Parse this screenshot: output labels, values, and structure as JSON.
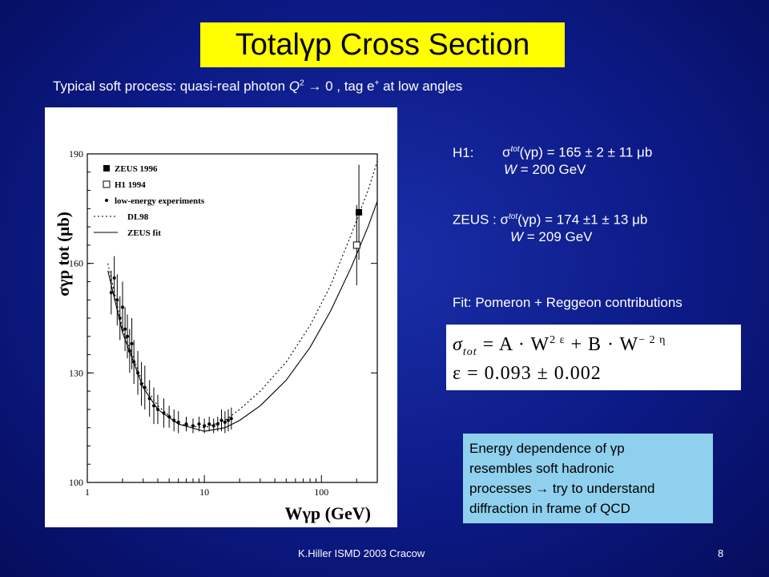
{
  "title": {
    "prefix": "Total ",
    "greek": "γ",
    "suffix": "p Cross Section"
  },
  "subtitle": {
    "text1": "Typical soft process:  quasi-real photon ",
    "q": "Q",
    "q_exp": "2",
    "arrow": " → ",
    "text2": "0 ,  tag  e",
    "e_exp": "+",
    "text3": "  at low angles"
  },
  "results": {
    "h1": {
      "label": "H1:",
      "sigma": "σ",
      "sup": "tot",
      "value": "(γp) = 165 ± 2 ± 11 μb",
      "w_var": "W",
      "w_value": " = 200 GeV"
    },
    "zeus": {
      "label": "ZEUS : ",
      "sigma": "σ",
      "sup": "tot",
      "value": "(γp) = 174 ±1 ± 13 μb",
      "w_var": "W",
      "w_value": " = 209 GeV"
    }
  },
  "fit_label": "Fit: Pomeron + Reggeon contributions",
  "formula": {
    "line1_sigma": "σ",
    "line1_sub": "tot",
    "line1_rhs": "= A · W",
    "line1_exp1": "2 ε",
    "line1_mid": "+ B · W",
    "line1_exp2": "− 2 η",
    "line2": "ε = 0.093 ± 0.002"
  },
  "note": {
    "line1": "Energy dependence of γp",
    "line2": "resembles soft hadronic",
    "line3": "processes → try to understand",
    "line4": "diffraction in frame of QCD"
  },
  "footer": {
    "left": "K.Hiller ISMD 2003   Cracow",
    "page": "8"
  },
  "chart_data": {
    "type": "scatter",
    "xlabel": "Wγp (GeV)",
    "ylabel": "σγp tot (μb)",
    "x_scale": "log",
    "xlim": [
      1,
      300
    ],
    "ylim": [
      100,
      190
    ],
    "x_ticks": [
      "1",
      "10",
      "100"
    ],
    "y_ticks": [
      "100",
      "130",
      "160",
      "190"
    ],
    "legend": [
      "ZEUS 1996",
      "H1 1994",
      "low-energy experiments",
      "DL98",
      "ZEUS fit"
    ],
    "legend_position": "top-left",
    "series": [
      {
        "name": "ZEUS 1996",
        "points": [
          {
            "x": 209,
            "y": 174,
            "err": 13
          }
        ]
      },
      {
        "name": "H1 1994",
        "points": [
          {
            "x": 200,
            "y": 165,
            "err": 11
          }
        ]
      },
      {
        "name": "low-energy experiments",
        "points": [
          {
            "x": 1.6,
            "y": 152,
            "err": 6
          },
          {
            "x": 1.7,
            "y": 156,
            "err": 6
          },
          {
            "x": 1.8,
            "y": 150,
            "err": 7
          },
          {
            "x": 1.9,
            "y": 145,
            "err": 6
          },
          {
            "x": 2.0,
            "y": 148,
            "err": 7
          },
          {
            "x": 2.1,
            "y": 142,
            "err": 6
          },
          {
            "x": 2.2,
            "y": 140,
            "err": 6
          },
          {
            "x": 2.3,
            "y": 136,
            "err": 6
          },
          {
            "x": 2.4,
            "y": 138,
            "err": 7
          },
          {
            "x": 2.5,
            "y": 133,
            "err": 6
          },
          {
            "x": 2.7,
            "y": 130,
            "err": 6
          },
          {
            "x": 2.9,
            "y": 127,
            "err": 6
          },
          {
            "x": 3.1,
            "y": 126,
            "err": 6
          },
          {
            "x": 3.4,
            "y": 123,
            "err": 5
          },
          {
            "x": 3.7,
            "y": 121,
            "err": 5
          },
          {
            "x": 4.0,
            "y": 120,
            "err": 4
          },
          {
            "x": 4.5,
            "y": 119,
            "err": 4
          },
          {
            "x": 5.0,
            "y": 118,
            "err": 3
          },
          {
            "x": 5.5,
            "y": 117,
            "err": 3
          },
          {
            "x": 6.0,
            "y": 116.5,
            "err": 3
          },
          {
            "x": 7.0,
            "y": 116,
            "err": 2
          },
          {
            "x": 8.0,
            "y": 115.5,
            "err": 2
          },
          {
            "x": 9.0,
            "y": 116,
            "err": 2
          },
          {
            "x": 10,
            "y": 115.5,
            "err": 2
          },
          {
            "x": 11,
            "y": 116,
            "err": 2
          },
          {
            "x": 12,
            "y": 115.5,
            "err": 2
          },
          {
            "x": 13,
            "y": 116,
            "err": 2
          },
          {
            "x": 14,
            "y": 117,
            "err": 3
          },
          {
            "x": 15,
            "y": 116.5,
            "err": 3
          },
          {
            "x": 16,
            "y": 117,
            "err": 3
          },
          {
            "x": 17,
            "y": 117.5,
            "err": 3
          }
        ]
      },
      {
        "name": "DL98",
        "style": "dotted",
        "points": [
          {
            "x": 1.5,
            "y": 160
          },
          {
            "x": 2,
            "y": 142
          },
          {
            "x": 3,
            "y": 127
          },
          {
            "x": 4,
            "y": 121
          },
          {
            "x": 6,
            "y": 116
          },
          {
            "x": 10,
            "y": 115
          },
          {
            "x": 15,
            "y": 117
          },
          {
            "x": 20,
            "y": 120
          },
          {
            "x": 30,
            "y": 125
          },
          {
            "x": 50,
            "y": 133
          },
          {
            "x": 80,
            "y": 143
          },
          {
            "x": 120,
            "y": 154
          },
          {
            "x": 180,
            "y": 168
          },
          {
            "x": 250,
            "y": 180
          },
          {
            "x": 300,
            "y": 188
          }
        ]
      },
      {
        "name": "ZEUS fit",
        "style": "solid",
        "points": [
          {
            "x": 1.5,
            "y": 158
          },
          {
            "x": 2,
            "y": 141
          },
          {
            "x": 3,
            "y": 126
          },
          {
            "x": 4,
            "y": 120
          },
          {
            "x": 6,
            "y": 116
          },
          {
            "x": 10,
            "y": 114
          },
          {
            "x": 15,
            "y": 115
          },
          {
            "x": 20,
            "y": 117
          },
          {
            "x": 30,
            "y": 121
          },
          {
            "x": 50,
            "y": 128
          },
          {
            "x": 80,
            "y": 137
          },
          {
            "x": 120,
            "y": 147
          },
          {
            "x": 180,
            "y": 159
          },
          {
            "x": 250,
            "y": 170
          },
          {
            "x": 300,
            "y": 177
          }
        ]
      }
    ]
  }
}
